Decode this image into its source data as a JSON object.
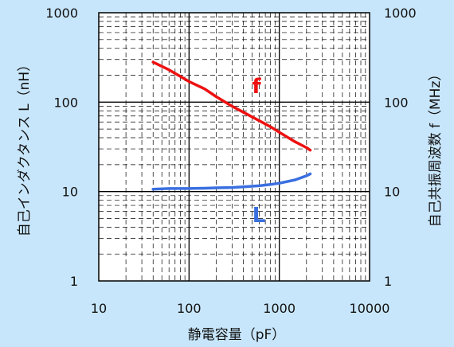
{
  "chart_data": {
    "type": "line",
    "xlabel": "静電容量（pF）",
    "ylabel_left": "自己インダクタンス L（nH）",
    "ylabel_right": "自己共振周波数 f（MHz）",
    "x_scale": "log",
    "y_scale": "log",
    "xlim": [
      10,
      10000
    ],
    "ylim": [
      1,
      1000
    ],
    "x_ticks": [
      "10",
      "100",
      "1000",
      "10000"
    ],
    "y_ticks_left": [
      "1",
      "10",
      "100",
      "1000"
    ],
    "y_ticks_right": [
      "1",
      "10",
      "100",
      "1000"
    ],
    "grid": true,
    "series": [
      {
        "name": "f",
        "color": "#ee1111",
        "x": [
          40,
          60,
          100,
          150,
          200,
          300,
          400,
          600,
          800,
          1000,
          1500,
          2000,
          2200
        ],
        "y": [
          280,
          230,
          170,
          140,
          115,
          90,
          77,
          62,
          53,
          46,
          36,
          31,
          29
        ]
      },
      {
        "name": "L",
        "color": "#3a6fe0",
        "x": [
          40,
          60,
          100,
          150,
          200,
          300,
          400,
          600,
          800,
          1000,
          1500,
          2000,
          2200
        ],
        "y": [
          10.6,
          10.8,
          10.8,
          10.9,
          11.0,
          11.1,
          11.3,
          11.6,
          12.0,
          12.4,
          13.5,
          15.0,
          15.8
        ]
      }
    ]
  }
}
